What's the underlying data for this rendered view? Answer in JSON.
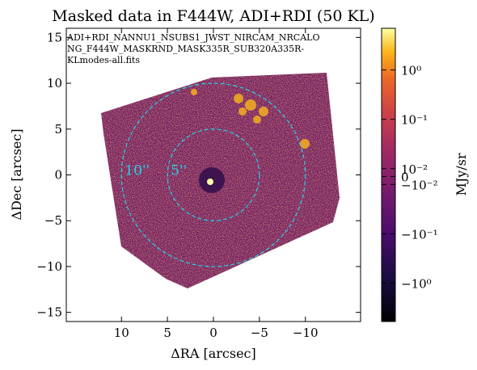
{
  "chart_data": {
    "type": "image",
    "title": "Masked data in F444W, ADI+RDI (50 KL)",
    "x_label": "ΔRA [arcsec]",
    "y_label": "ΔDec [arcsec]",
    "xlim": [
      16,
      -16
    ],
    "ylim": [
      -16,
      16
    ],
    "xticks": [
      10,
      5,
      0,
      {
        "value": -5,
        "label": "−5"
      },
      {
        "value": -10,
        "label": "−10"
      }
    ],
    "yticks": [
      {
        "value": -15,
        "label": "−15"
      },
      {
        "value": -10,
        "label": "−10"
      },
      {
        "value": -5,
        "label": "−5"
      },
      0,
      5,
      10,
      15
    ],
    "annotation": [
      "ADI+RDI_NANNU1_NSUBS1_JWST_NIRCAM_NRCALO",
      "NG_F444W_MASKRND_MASK335R_SUB320A335R-",
      "KLmodes-all.fits"
    ],
    "circles": [
      {
        "radius": 5,
        "label": "5''",
        "color": "#22d3e6"
      },
      {
        "radius": 10,
        "label": "10''",
        "color": "#22d3e6"
      }
    ],
    "colorbar": {
      "label": "MJy/sr",
      "colormap": "inferno",
      "scale": "symlog",
      "linthresh": 0.01,
      "clim": [
        -6,
        7
      ],
      "ticks": [
        {
          "value": 1,
          "label": "10⁰"
        },
        {
          "value": 0.1,
          "label": "10⁻¹"
        },
        {
          "value": 0.01,
          "label": "10⁻²"
        },
        0,
        {
          "value": -0.01,
          "label": "−10⁻²"
        },
        {
          "value": -0.1,
          "label": "−10⁻¹"
        },
        {
          "value": -1,
          "label": "−10⁰"
        }
      ]
    }
  }
}
